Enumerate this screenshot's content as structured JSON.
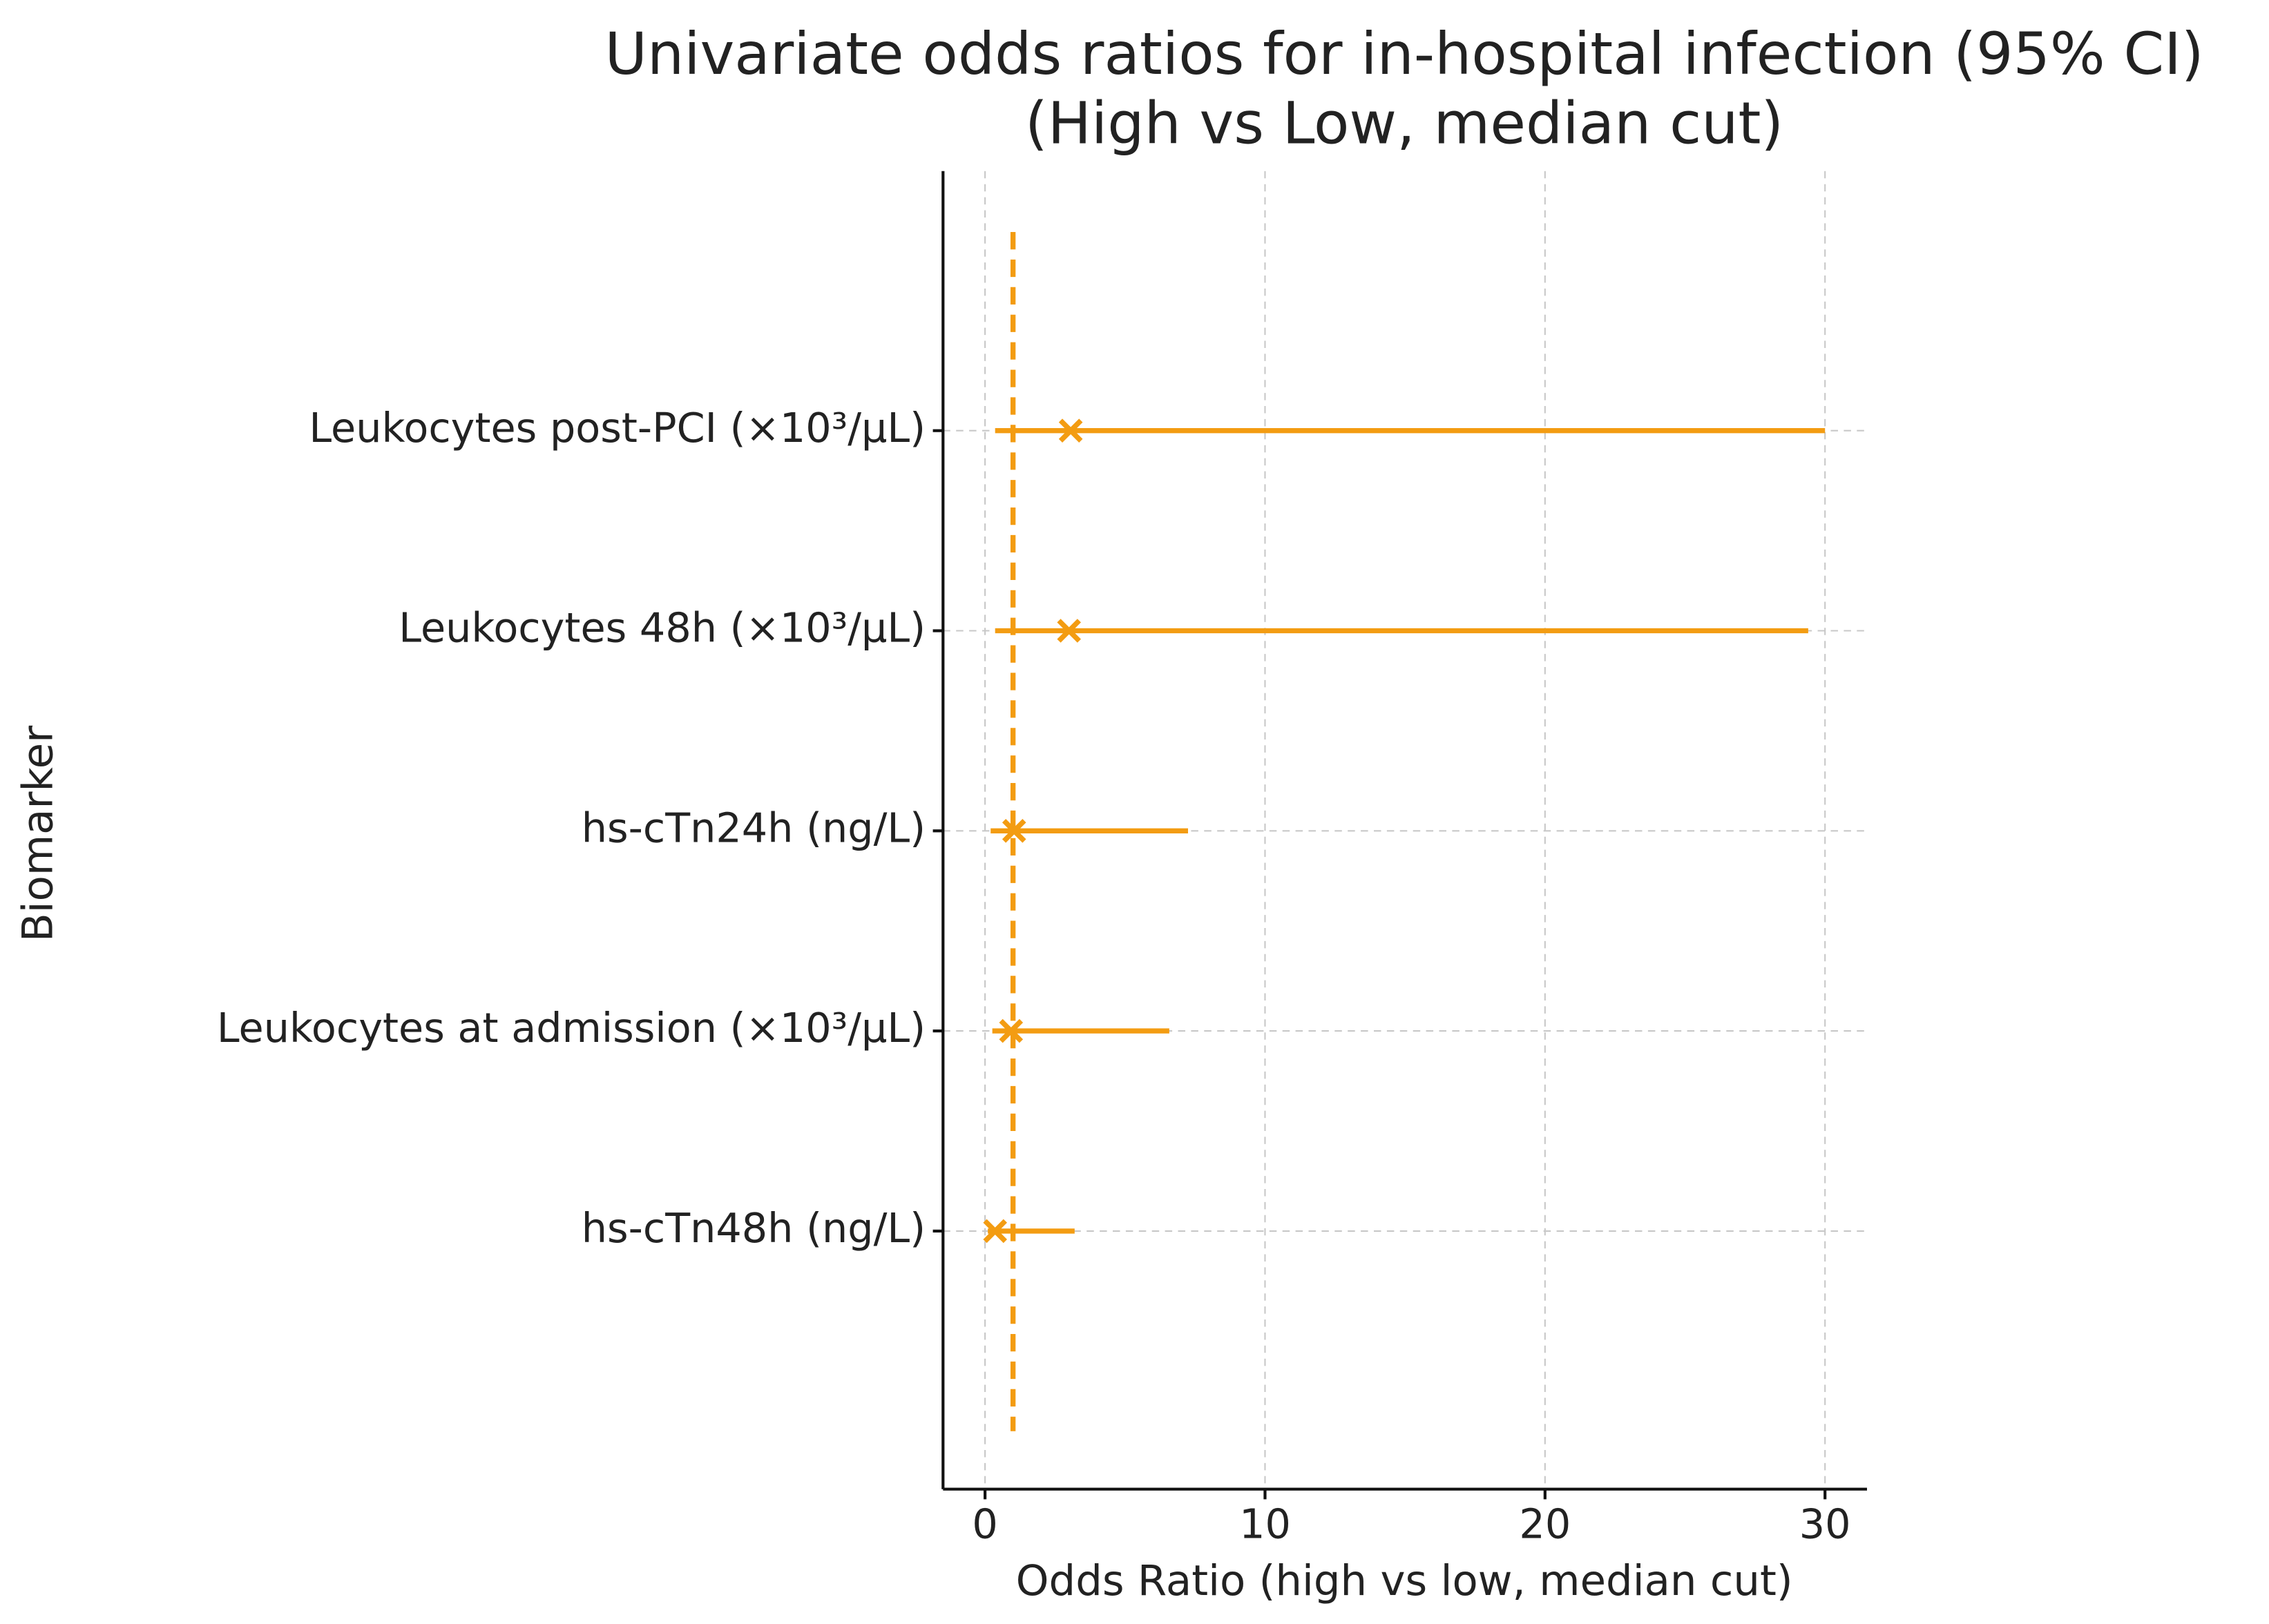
{
  "chart_data": {
    "type": "forest",
    "title": "Univariate odds ratios for in-hospital infection (95% CI)",
    "subtitle": "(High vs Low, median cut)",
    "x_label": "Odds Ratio (high vs low, median cut)",
    "y_label": "Biomarker",
    "categories": [
      "Leukocytes post-PCI (×10³/μL)",
      "Leukocytes 48h (×10³/μL)",
      "hs-cTn24h (ng/L)",
      "Leukocytes at admission (×10³/μL)",
      "hs-cTn48h (ng/L)"
    ],
    "odds_ratio": [
      3.06,
      3.0,
      1.04,
      0.93,
      0.36
    ],
    "ci_low": [
      0.36,
      0.36,
      0.2,
      0.26,
      0.1
    ],
    "ci_high": [
      30.0,
      29.4,
      7.25,
      6.58,
      3.2
    ],
    "reference_line": 1,
    "color": "#f39c12",
    "xlim": [
      -1.5,
      31.5
    ],
    "xticks": [
      0,
      10,
      20,
      30
    ],
    "grid": true
  }
}
